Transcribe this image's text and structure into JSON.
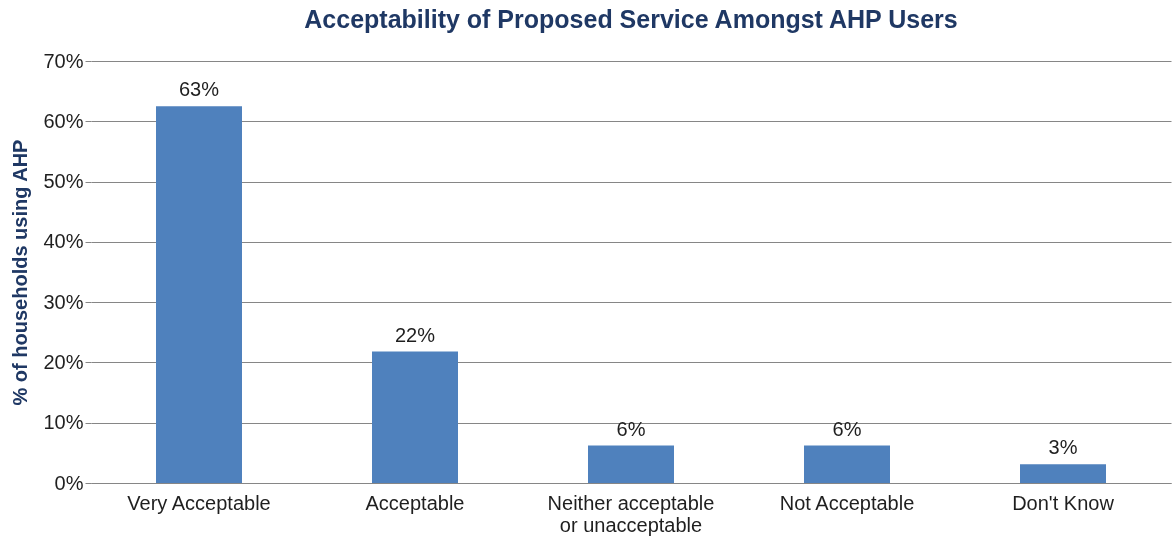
{
  "chart_data": {
    "type": "bar",
    "title": "Acceptability of Proposed Service Amongst AHP Users",
    "ylabel": "% of households using AHP",
    "categories": [
      "Very Acceptable",
      "Acceptable",
      "Neither acceptable or unacceptable",
      "Not Acceptable",
      "Don't Know"
    ],
    "values": [
      62.5,
      21.8,
      6.2,
      6.2,
      3.1
    ],
    "value_labels": [
      "63%",
      "22%",
      "6%",
      "6%",
      "3%"
    ],
    "color": "#4f81bd",
    "ylim": [
      0,
      70
    ],
    "yticks": [
      {
        "value": 0,
        "label": "0%"
      },
      {
        "value": 10,
        "label": "10%"
      },
      {
        "value": 20,
        "label": "20%"
      },
      {
        "value": 30,
        "label": "30%"
      },
      {
        "value": 40,
        "label": "40%"
      },
      {
        "value": 50,
        "label": "50%"
      },
      {
        "value": 60,
        "label": "60%"
      },
      {
        "value": 70,
        "label": "70%"
      }
    ],
    "grid": "y"
  }
}
